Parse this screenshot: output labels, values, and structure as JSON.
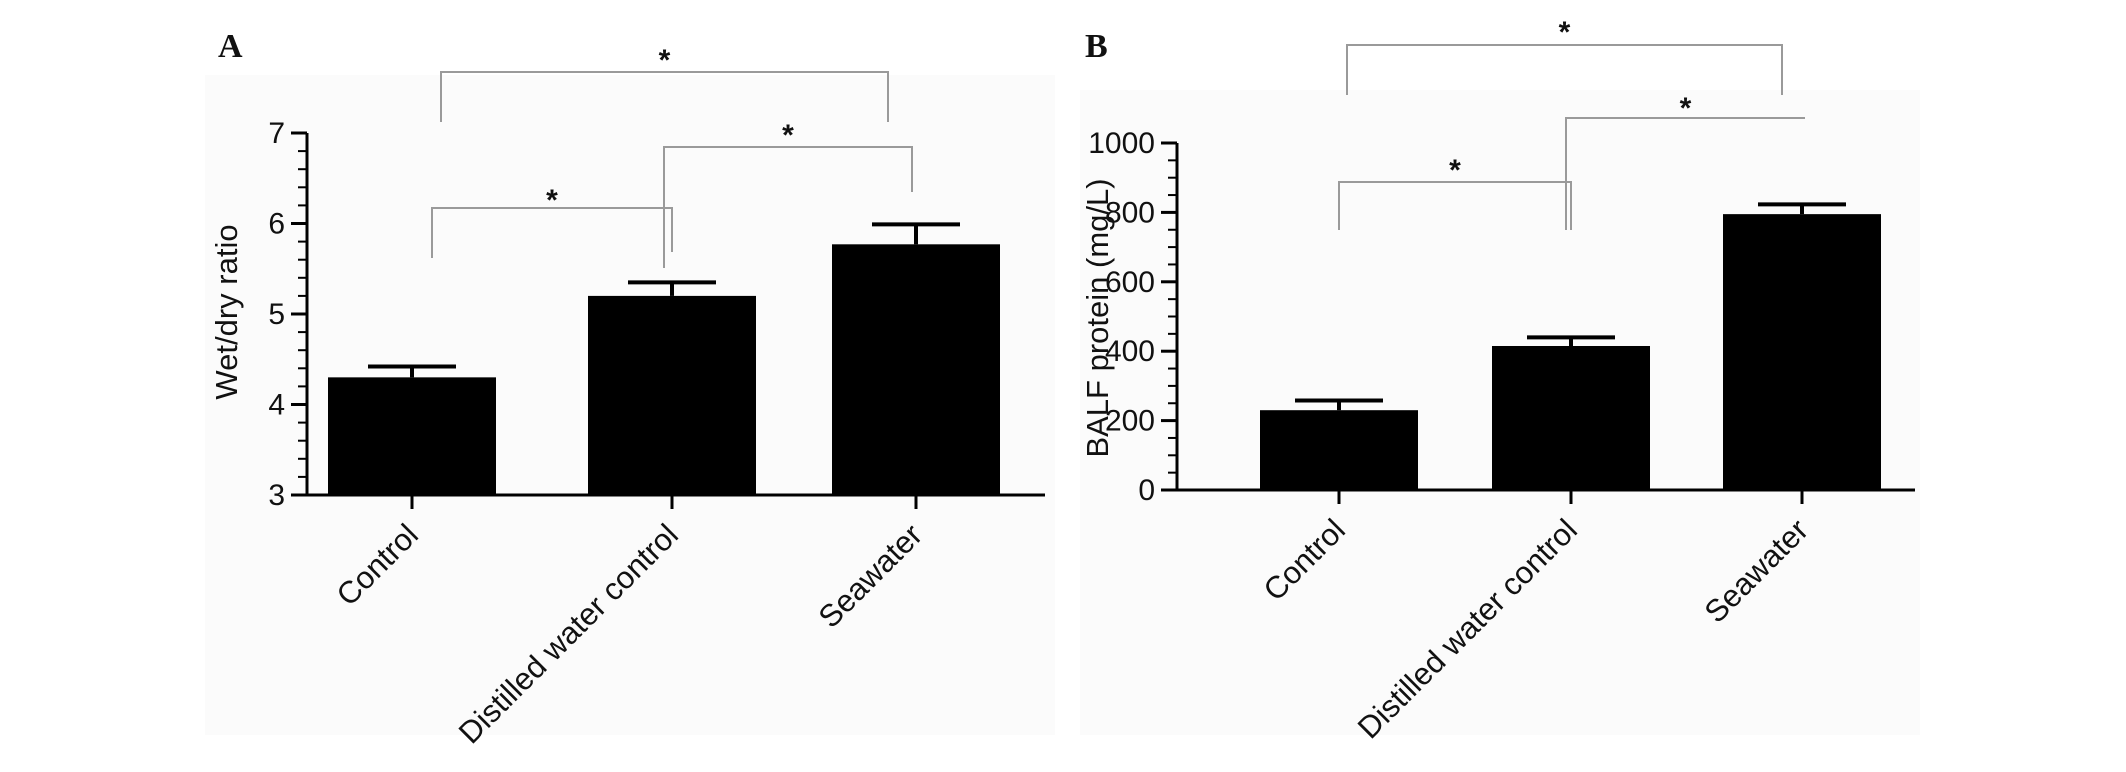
{
  "chart_data": [
    {
      "type": "bar",
      "panel": "A",
      "title": "",
      "xlabel": "",
      "ylabel": "Wet/dry ratio",
      "ylim": [
        3,
        7
      ],
      "yticks": [
        "3",
        "4",
        "5",
        "6",
        "7"
      ],
      "categories": [
        "Control",
        "Distilled water control",
        "Seawater"
      ],
      "values": [
        4.3,
        5.2,
        5.77
      ],
      "errors": [
        0.12,
        0.15,
        0.22
      ],
      "color": "#000000",
      "significance": [
        {
          "from": 0,
          "to": 1,
          "label": "*"
        },
        {
          "from": 1,
          "to": 2,
          "label": "*"
        },
        {
          "from": 0,
          "to": 2,
          "label": "*"
        }
      ]
    },
    {
      "type": "bar",
      "panel": "B",
      "title": "",
      "xlabel": "",
      "ylabel": "BALF protein (mg/L)",
      "ylim": [
        0,
        1000
      ],
      "yticks": [
        "0",
        "200",
        "400",
        "600",
        "800",
        "1000"
      ],
      "categories": [
        "Control",
        "Distilled water control",
        "Seawater"
      ],
      "values": [
        230,
        415,
        795
      ],
      "errors": [
        28,
        25,
        28
      ],
      "color": "#000000",
      "significance": [
        {
          "from": 0,
          "to": 1,
          "label": "*"
        },
        {
          "from": 1,
          "to": 2,
          "label": "*"
        },
        {
          "from": 0,
          "to": 2,
          "label": "*"
        }
      ]
    }
  ]
}
